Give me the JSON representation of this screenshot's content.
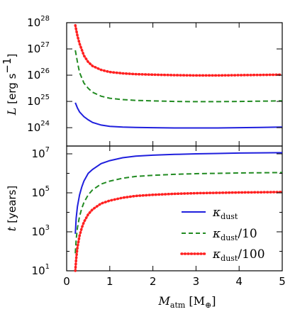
{
  "chart_data": [
    {
      "type": "line",
      "panel": "top",
      "ylabel_italic": "L",
      "ylabel_units_main": "erg s",
      "ylabel_units_exp": "−1",
      "xlim": [
        0,
        5
      ],
      "ylim_log10": [
        23.3,
        28
      ],
      "yscale": "log",
      "y_ticks": [
        {
          "base": "10",
          "exp": "24",
          "log10": 24
        },
        {
          "base": "10",
          "exp": "25",
          "log10": 25
        },
        {
          "base": "10",
          "exp": "26",
          "log10": 26
        },
        {
          "base": "10",
          "exp": "27",
          "log10": 27
        },
        {
          "base": "10",
          "exp": "28",
          "log10": 28
        }
      ],
      "series": [
        {
          "color": "#1f1fdd",
          "style": "solid",
          "x": [
            0.2,
            0.25,
            0.3,
            0.4,
            0.5,
            0.6,
            0.8,
            1.0,
            1.3,
            1.6,
            2.0,
            2.5,
            3.0,
            3.5,
            4.0,
            4.5,
            5.0
          ],
          "y_log10": [
            24.95,
            24.75,
            24.6,
            24.42,
            24.3,
            24.2,
            24.1,
            24.05,
            24.02,
            24.01,
            24.0,
            23.99,
            23.99,
            23.99,
            24.0,
            24.01,
            24.02
          ]
        },
        {
          "color": "#228b22",
          "style": "dashed",
          "x": [
            0.2,
            0.25,
            0.3,
            0.4,
            0.5,
            0.6,
            0.8,
            1.0,
            1.3,
            1.6,
            2.0,
            2.5,
            3.0,
            3.5,
            4.0,
            4.5,
            5.0
          ],
          "y_log10": [
            26.95,
            26.5,
            26.1,
            25.7,
            25.5,
            25.35,
            25.2,
            25.12,
            25.07,
            25.04,
            25.02,
            25.0,
            24.99,
            24.99,
            25.0,
            25.01,
            25.02
          ]
        },
        {
          "color": "#ff2020",
          "style": "dotted",
          "x": [
            0.2,
            0.25,
            0.3,
            0.4,
            0.5,
            0.6,
            0.8,
            1.0,
            1.3,
            1.6,
            2.0,
            2.5,
            3.0,
            3.5,
            4.0,
            4.5,
            5.0
          ],
          "y_log10": [
            27.9,
            27.5,
            27.2,
            26.75,
            26.5,
            26.35,
            26.2,
            26.12,
            26.07,
            26.04,
            26.02,
            26.0,
            25.99,
            25.99,
            26.0,
            26.01,
            26.02
          ]
        }
      ]
    },
    {
      "type": "line",
      "panel": "bottom",
      "ylabel_italic": "t",
      "ylabel_units": "[years]",
      "xlabel_main": "M",
      "xlabel_sub": "atm",
      "xlabel_units": "[M",
      "xlabel_units_sub": "⊕",
      "xlabel_units_close": "]",
      "xlim": [
        0,
        5
      ],
      "ylim_log10": [
        1,
        7.4
      ],
      "yscale": "log",
      "x_ticks": [
        "0",
        "1",
        "2",
        "3",
        "4",
        "5"
      ],
      "y_ticks": [
        {
          "base": "10",
          "exp": "1",
          "log10": 1
        },
        {
          "base": "10",
          "exp": "3",
          "log10": 3
        },
        {
          "base": "10",
          "exp": "5",
          "log10": 5
        },
        {
          "base": "10",
          "exp": "7",
          "log10": 7
        }
      ],
      "legend": {
        "placement": "lower-right",
        "entries": [
          {
            "main": "κ",
            "sub": "dust",
            "suffix": ""
          },
          {
            "main": "κ",
            "sub": "dust",
            "suffix": "/10"
          },
          {
            "main": "κ",
            "sub": "dust",
            "suffix": "/100"
          }
        ]
      },
      "series": [
        {
          "color": "#1f1fdd",
          "style": "solid",
          "x": [
            0.2,
            0.22,
            0.25,
            0.3,
            0.35,
            0.4,
            0.5,
            0.6,
            0.8,
            1.0,
            1.3,
            1.6,
            2.0,
            2.5,
            3.0,
            3.5,
            4.0,
            4.5,
            5.0
          ],
          "y_log10": [
            2.9,
            3.7,
            4.3,
            4.9,
            5.3,
            5.6,
            6.0,
            6.2,
            6.5,
            6.65,
            6.8,
            6.88,
            6.93,
            6.97,
            7.0,
            7.02,
            7.04,
            7.05,
            7.06
          ]
        },
        {
          "color": "#228b22",
          "style": "dashed",
          "x": [
            0.2,
            0.22,
            0.25,
            0.3,
            0.35,
            0.4,
            0.5,
            0.6,
            0.8,
            1.0,
            1.3,
            1.6,
            2.0,
            2.5,
            3.0,
            3.5,
            4.0,
            4.5,
            5.0
          ],
          "y_log10": [
            1.9,
            2.6,
            3.2,
            3.8,
            4.2,
            4.5,
            4.9,
            5.15,
            5.45,
            5.6,
            5.75,
            5.84,
            5.9,
            5.95,
            5.98,
            6.0,
            6.02,
            6.03,
            6.04
          ]
        },
        {
          "color": "#ff2020",
          "style": "dotted",
          "x": [
            0.2,
            0.22,
            0.25,
            0.3,
            0.35,
            0.4,
            0.5,
            0.6,
            0.8,
            1.0,
            1.3,
            1.6,
            2.0,
            2.5,
            3.0,
            3.5,
            4.0,
            4.5,
            5.0
          ],
          "y_log10": [
            1.0,
            1.6,
            2.2,
            2.8,
            3.2,
            3.5,
            3.9,
            4.15,
            4.45,
            4.6,
            4.75,
            4.84,
            4.9,
            4.95,
            4.98,
            5.0,
            5.02,
            5.03,
            5.04
          ]
        }
      ]
    }
  ]
}
